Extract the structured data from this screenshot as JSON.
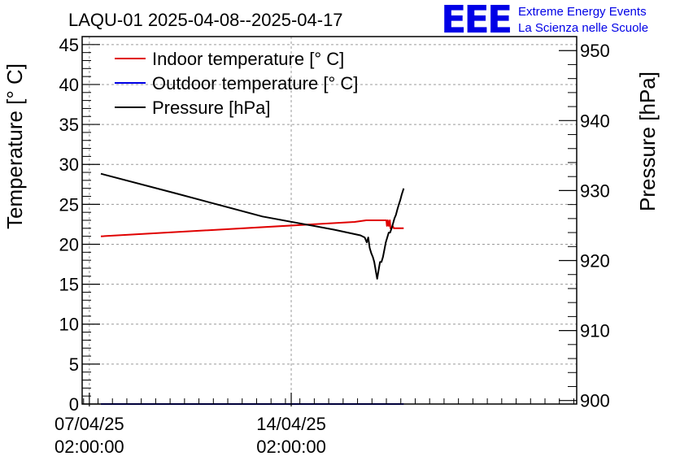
{
  "logo": {
    "text": "EEE",
    "line1": "Extreme Energy Events",
    "line2": "La Scienza nelle Scuole",
    "color": "#0000e6"
  },
  "chart_data": {
    "type": "line",
    "title": "LAQU-01 2025-04-08--2025-04-17",
    "ylabel": "Temperature [° C]",
    "y2label": "Pressure [hPa]",
    "ylim": [
      0,
      46
    ],
    "y2lim": [
      899.5,
      952
    ],
    "xlim": [
      -0.25,
      16.9
    ],
    "yticks": [
      "0",
      "5",
      "10",
      "15",
      "20",
      "25",
      "30",
      "35",
      "40",
      "45"
    ],
    "y2ticks": [
      "900",
      "910",
      "920",
      "930",
      "940",
      "950"
    ],
    "xticks": [
      {
        "line1": "07/04/25",
        "line2": "02:00:00",
        "x": 0
      },
      {
        "line1": "14/04/25",
        "line2": "02:00:00",
        "x": 7
      }
    ],
    "grid": true,
    "legend": "top-left",
    "legend_entries": [
      "Indoor temperature [° C]",
      "Outdoor temperature [° C]",
      "Pressure [hPa]"
    ],
    "series": [
      {
        "name": "Indoor temperature [° C]",
        "axis": "left",
        "color": "#e00000",
        "x": [
          0.4,
          9.2,
          9.6,
          10.3,
          10.32,
          10.35,
          10.38,
          10.42,
          10.44,
          10.48,
          10.52,
          10.56,
          10.9
        ],
        "y": [
          21.0,
          22.8,
          23.0,
          23.0,
          22.3,
          23.0,
          22.3,
          23.0,
          22.0,
          22.0,
          22.3,
          22.0,
          22.0
        ]
      },
      {
        "name": "Outdoor temperature [° C]",
        "axis": "left",
        "color": "#0000e6",
        "x": [
          0.4,
          10.9
        ],
        "y": [
          0.0,
          0.0
        ]
      },
      {
        "name": "Pressure [hPa]",
        "axis": "right",
        "color": "#000000",
        "x": [
          0.4,
          3.0,
          6.0,
          8.5,
          9.4,
          9.55,
          9.62,
          9.67,
          9.72,
          9.78,
          9.83,
          9.88,
          9.93,
          9.98,
          10.03,
          10.08,
          10.13,
          10.18,
          10.23,
          10.28,
          10.33,
          10.38,
          10.43,
          10.48,
          10.53,
          10.58,
          10.63,
          10.68,
          10.73,
          10.78,
          10.83,
          10.9
        ],
        "y": [
          932.4,
          929.6,
          926.3,
          924.4,
          923.6,
          923.3,
          922.6,
          923.3,
          921.8,
          921.0,
          920.5,
          919.8,
          918.6,
          917.4,
          918.6,
          919.8,
          919.8,
          920.5,
          921.5,
          922.6,
          923.3,
          924.0,
          924.0,
          924.6,
          925.3,
          926.0,
          926.5,
          927.3,
          928.0,
          928.6,
          929.4,
          930.3
        ]
      }
    ]
  }
}
